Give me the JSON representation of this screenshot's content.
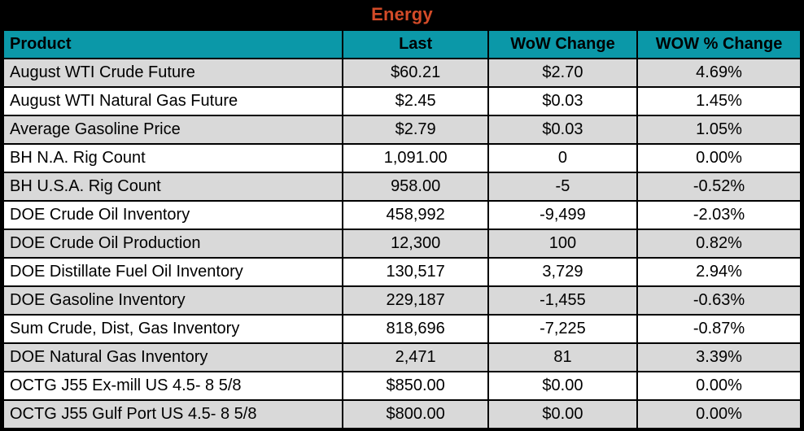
{
  "title": "Energy",
  "colors": {
    "frame": "#000000",
    "header_bg": "#0b98a8",
    "title_color": "#d34b28",
    "row_alt_bg": "#d9d9d9",
    "row_bg": "#ffffff",
    "text": "#000000"
  },
  "table": {
    "columns": [
      "Product",
      "Last",
      "WoW Change",
      "WOW % Change"
    ],
    "rows": [
      {
        "product": "August WTI Crude Future",
        "last": "$60.21",
        "wow_change": "$2.70",
        "wow_pct_change": "4.69%"
      },
      {
        "product": "August WTI Natural Gas Future",
        "last": "$2.45",
        "wow_change": "$0.03",
        "wow_pct_change": "1.45%"
      },
      {
        "product": "Average Gasoline Price",
        "last": "$2.79",
        "wow_change": "$0.03",
        "wow_pct_change": "1.05%"
      },
      {
        "product": "BH N.A. Rig Count",
        "last": "1,091.00",
        "wow_change": "0",
        "wow_pct_change": "0.00%"
      },
      {
        "product": "BH U.S.A. Rig Count",
        "last": "958.00",
        "wow_change": "-5",
        "wow_pct_change": "-0.52%"
      },
      {
        "product": "DOE Crude Oil Inventory",
        "last": "458,992",
        "wow_change": "-9,499",
        "wow_pct_change": "-2.03%"
      },
      {
        "product": "DOE Crude Oil Production",
        "last": "12,300",
        "wow_change": "100",
        "wow_pct_change": "0.82%"
      },
      {
        "product": "DOE Distillate Fuel Oil Inventory",
        "last": "130,517",
        "wow_change": "3,729",
        "wow_pct_change": "2.94%"
      },
      {
        "product": "DOE Gasoline Inventory",
        "last": "229,187",
        "wow_change": "-1,455",
        "wow_pct_change": "-0.63%"
      },
      {
        "product": "Sum Crude, Dist, Gas Inventory",
        "last": "818,696",
        "wow_change": "-7,225",
        "wow_pct_change": "-0.87%"
      },
      {
        "product": "DOE Natural Gas Inventory",
        "last": "2,471",
        "wow_change": "81",
        "wow_pct_change": "3.39%"
      },
      {
        "product": "OCTG J55 Ex-mill US 4.5- 8 5/8",
        "last": "$850.00",
        "wow_change": "$0.00",
        "wow_pct_change": "0.00%"
      },
      {
        "product": "OCTG J55 Gulf Port US 4.5- 8 5/8",
        "last": "$800.00",
        "wow_change": "$0.00",
        "wow_pct_change": "0.00%"
      }
    ]
  }
}
